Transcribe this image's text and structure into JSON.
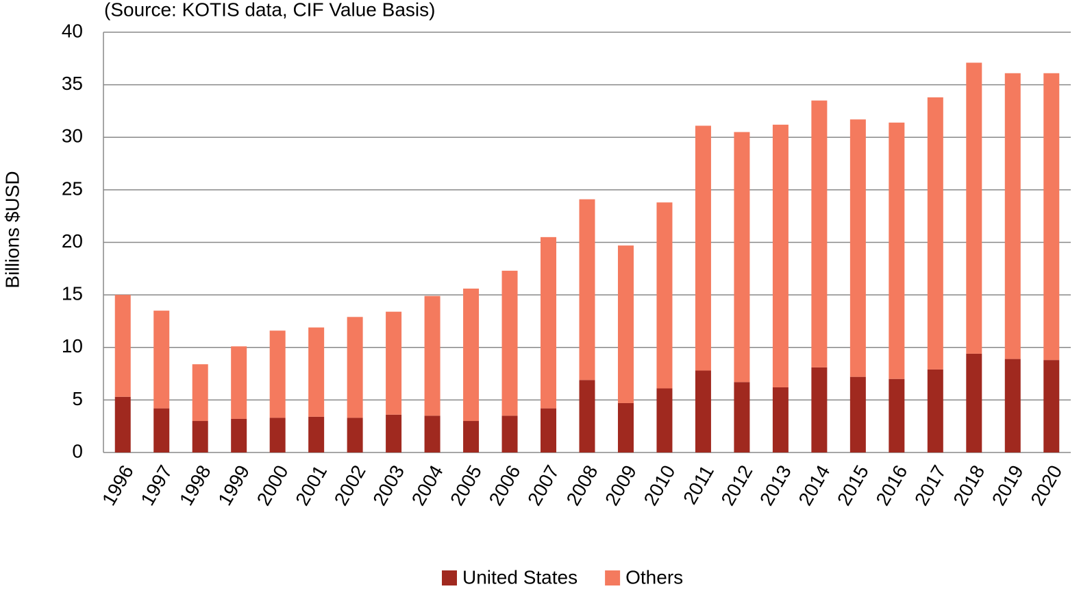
{
  "chart_data": {
    "type": "stacked_bar",
    "subtitle": "(Source: KOTIS data, CIF Value Basis)",
    "y_label": "Billions $USD",
    "categories": [
      "1996",
      "1997",
      "1998",
      "1999",
      "2000",
      "2001",
      "2002",
      "2003",
      "2004",
      "2005",
      "2006",
      "2007",
      "2008",
      "2009",
      "2010",
      "2011",
      "2012",
      "2013",
      "2014",
      "2015",
      "2016",
      "2017",
      "2018",
      "2019",
      "2020"
    ],
    "series": [
      {
        "name": "United States",
        "color": "#a0291f",
        "values": [
          5.3,
          4.2,
          3.0,
          3.2,
          3.3,
          3.4,
          3.3,
          3.6,
          3.5,
          3.0,
          3.5,
          4.2,
          6.9,
          4.7,
          6.1,
          7.8,
          6.7,
          6.2,
          8.1,
          7.2,
          7.0,
          7.9,
          9.4,
          8.9,
          8.8
        ]
      },
      {
        "name": "Others",
        "color": "#f47a5e",
        "values": [
          9.7,
          9.3,
          5.4,
          6.9,
          8.3,
          8.5,
          9.6,
          9.8,
          11.4,
          12.6,
          13.8,
          16.3,
          17.2,
          15.0,
          17.7,
          23.3,
          23.8,
          25.0,
          25.4,
          24.5,
          24.4,
          25.9,
          27.7,
          27.2,
          27.3
        ]
      }
    ],
    "ylim": [
      0,
      40
    ],
    "yticks": [
      0,
      5,
      10,
      15,
      20,
      25,
      30,
      35,
      40
    ],
    "grid": true,
    "legend": "bottom"
  }
}
